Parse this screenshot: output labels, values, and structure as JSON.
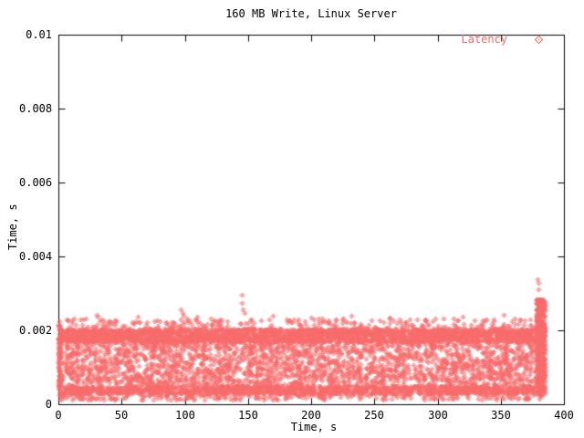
{
  "title": "160 MB Write, Linux Server",
  "axes": {
    "x": {
      "label": "Time, s",
      "min": 0,
      "max": 400,
      "ticks": [
        0,
        50,
        100,
        150,
        200,
        250,
        300,
        350,
        400
      ],
      "tick_labels": [
        "0",
        "50",
        "100",
        "150",
        "200",
        "250",
        "300",
        "350",
        "400"
      ]
    },
    "y": {
      "label": "Time, s",
      "min": 0,
      "max": 0.01,
      "ticks": [
        0,
        0.002,
        0.004,
        0.006,
        0.008,
        0.01
      ],
      "tick_labels": [
        "0",
        "0.002",
        "0.004",
        "0.006",
        "0.008",
        "0.01"
      ]
    }
  },
  "legend": {
    "label": "Latency",
    "marker": "open-diamond"
  },
  "colors": {
    "points": "#f76b6b",
    "axis": "#000000",
    "background": "#ffffff"
  },
  "chart_data": {
    "type": "scatter",
    "title": "160 MB Write, Linux Server",
    "xlabel": "Time, s",
    "ylabel": "Time, s",
    "xlim": [
      0,
      400
    ],
    "ylim": [
      0,
      0.01
    ],
    "grid": false,
    "legend_position": "top-right-inside",
    "series": [
      {
        "name": "Latency",
        "marker": "open-diamond",
        "color": "#f76b6b",
        "x_extent_s": [
          0,
          385
        ],
        "summary": "Dense latency cloud from 0 to ~385 s: solid stripe 0.0017-0.00205 s, lacy scatter 0.0005-0.0017 s, dense floor 0.0002-0.0005 s, sparse fringe to ~0.0024 s, terminal spike at ~378-385 s reaching ~0.0034 s",
        "bands": [
          {
            "x": [
              0,
              385
            ],
            "y": [
              0.00168,
              0.00205
            ],
            "count": 3000
          },
          {
            "x": [
              0,
              385
            ],
            "y": [
              0.0005,
              0.00168
            ],
            "count": 2400
          },
          {
            "x": [
              0,
              385
            ],
            "y": [
              0.00028,
              0.0005
            ],
            "count": 1600
          },
          {
            "x": [
              0,
              385
            ],
            "y": [
              0.00012,
              0.00028
            ],
            "count": 260
          },
          {
            "x": [
              0,
              385
            ],
            "y": [
              0.00205,
              0.00232
            ],
            "count": 240
          },
          {
            "x": [
              378,
              385
            ],
            "y": [
              0.0004,
              0.00285
            ],
            "count": 380
          },
          {
            "x": [
              0,
              1.5
            ],
            "y": [
              0.0005,
              0.00215
            ],
            "count": 70
          }
        ],
        "outliers": [
          [
            8,
            0.00228
          ],
          [
            22,
            0.00232
          ],
          [
            30,
            0.00242
          ],
          [
            31,
            0.00236
          ],
          [
            45,
            0.00228
          ],
          [
            63,
            0.00236
          ],
          [
            78,
            0.00228
          ],
          [
            97,
            0.00256
          ],
          [
            98,
            0.00248
          ],
          [
            99,
            0.0024
          ],
          [
            110,
            0.00238
          ],
          [
            128,
            0.0023
          ],
          [
            145,
            0.00297
          ],
          [
            145,
            0.00275
          ],
          [
            146,
            0.00258
          ],
          [
            147,
            0.00247
          ],
          [
            160,
            0.00228
          ],
          [
            170,
            0.0024
          ],
          [
            183,
            0.00228
          ],
          [
            200,
            0.00234
          ],
          [
            214,
            0.00228
          ],
          [
            232,
            0.0024
          ],
          [
            248,
            0.00228
          ],
          [
            262,
            0.00234
          ],
          [
            278,
            0.0023
          ],
          [
            290,
            0.00228
          ],
          [
            305,
            0.00232
          ],
          [
            320,
            0.00236
          ],
          [
            338,
            0.00228
          ],
          [
            352,
            0.00242
          ],
          [
            365,
            0.0023
          ],
          [
            379,
            0.00338
          ],
          [
            380,
            0.00328
          ],
          [
            380,
            0.0031
          ]
        ],
        "seed": 20
      }
    ]
  }
}
